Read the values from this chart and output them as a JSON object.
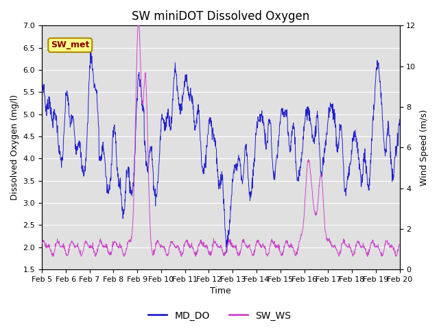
{
  "title": "SW miniDOT Dissolved Oxygen",
  "xlabel": "Time",
  "ylabel_left": "Dissolved Oxygen (mg/l)",
  "ylabel_right": "Wind Speed (m/s)",
  "annotation": "SW_met",
  "ylim_left": [
    1.5,
    7.0
  ],
  "ylim_right": [
    0,
    12
  ],
  "yticks_left": [
    1.5,
    2.0,
    2.5,
    3.0,
    3.5,
    4.0,
    4.5,
    5.0,
    5.5,
    6.0,
    6.5,
    7.0
  ],
  "yticks_right": [
    0,
    2,
    4,
    6,
    8,
    10,
    12
  ],
  "xtick_labels": [
    "Feb 5",
    "Feb 6",
    "Feb 7",
    "Feb 8",
    "Feb 9",
    "Feb 10",
    "Feb 11",
    "Feb 12",
    "Feb 13",
    "Feb 14",
    "Feb 15",
    "Feb 16",
    "Feb 17",
    "Feb 18",
    "Feb 19",
    "Feb 20"
  ],
  "color_do": "#2222cc",
  "color_ws": "#cc44cc",
  "legend_labels": [
    "MD_DO",
    "SW_WS"
  ],
  "background_color": "#e0e0e0",
  "grid_color": "#ffffff",
  "title_fontsize": 12,
  "label_fontsize": 9,
  "tick_fontsize": 8,
  "annotation_facecolor": "#ffff88",
  "annotation_edgecolor": "#aa8800",
  "annotation_textcolor": "#880000"
}
